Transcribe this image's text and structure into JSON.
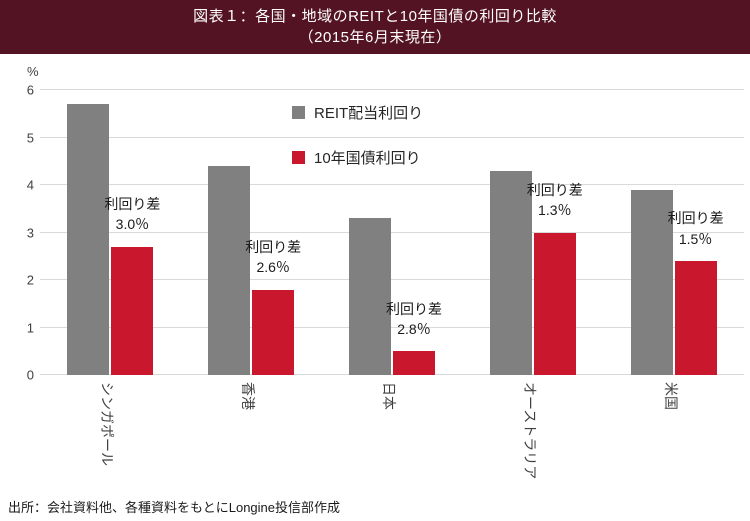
{
  "header": {
    "title_line1": "図表１：各国・地域のREITと10年国債の利回り比較",
    "title_line2": "（2015年6月末現在）"
  },
  "chart_data": {
    "type": "bar",
    "title": "図表１：各国・地域のREITと10年国債の利回り比較（2015年6月末現在）",
    "categories": [
      "シンガポール",
      "香港",
      "日本",
      "オーストラリア",
      "米国"
    ],
    "series": [
      {
        "name": "REIT配当利回り",
        "color": "#808080",
        "values": [
          5.7,
          4.4,
          3.3,
          4.3,
          3.9
        ]
      },
      {
        "name": "10年国債利回り",
        "color": "#c9182d",
        "values": [
          2.7,
          1.8,
          0.5,
          3.0,
          2.4
        ]
      }
    ],
    "diff_annotations": {
      "label": "利回り差",
      "values": [
        "3.0％",
        "2.6％",
        "2.8％",
        "1.3％",
        "1.5％"
      ]
    },
    "ylabel": "%",
    "xlabel": "",
    "ylim": [
      0,
      6
    ],
    "yticks": [
      0,
      1,
      2,
      3,
      4,
      5,
      6
    ],
    "grid": true,
    "legend_position": "top-center"
  },
  "footer": {
    "source": "出所：会社資料他、各種資料をもとにLongine投信部作成"
  },
  "colors": {
    "title_bg": "#531322",
    "title_text": "#ffffff",
    "reit_bar": "#808080",
    "bond_bar": "#c9182d",
    "gridline": "#d9d9d9",
    "axis_text": "#404040"
  }
}
